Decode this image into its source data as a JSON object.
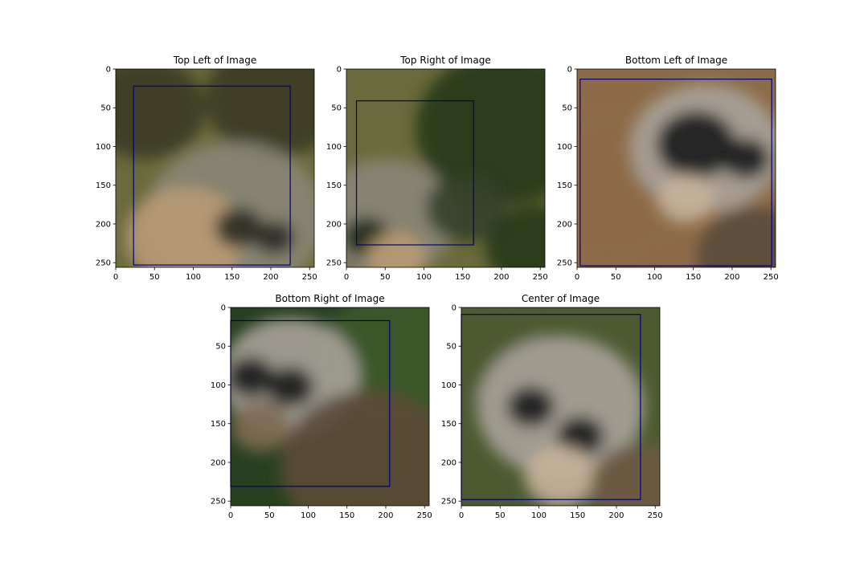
{
  "figure": {
    "background": "#ffffff",
    "axis_color": "#000000",
    "box_color": "#00007f"
  },
  "chart_data": [
    {
      "type": "image",
      "title": "Top Left of Image",
      "image_region": "top-left",
      "xlim": [
        0,
        256
      ],
      "ylim": [
        256,
        0
      ],
      "xticks": [
        0,
        50,
        100,
        150,
        200,
        250
      ],
      "yticks": [
        0,
        50,
        100,
        150,
        200,
        250
      ],
      "bounding_box": {
        "x1": 23,
        "y1": 22,
        "x2": 225,
        "y2": 253
      },
      "palette": [
        "#6b6a3c",
        "#3b3a24",
        "#8a8577",
        "#2a2a22",
        "#b99a76",
        "#4a4640"
      ]
    },
    {
      "type": "image",
      "title": "Top Right of Image",
      "image_region": "top-right",
      "xlim": [
        0,
        256
      ],
      "ylim": [
        256,
        0
      ],
      "xticks": [
        0,
        50,
        100,
        150,
        200,
        250
      ],
      "yticks": [
        0,
        50,
        100,
        150,
        200,
        250
      ],
      "bounding_box": {
        "x1": 13,
        "y1": 41,
        "x2": 164,
        "y2": 227
      },
      "palette": [
        "#6b6a3c",
        "#23391b",
        "#8a8577",
        "#1f2a16",
        "#b99a76",
        "#33402a"
      ]
    },
    {
      "type": "image",
      "title": "Bottom Left of Image",
      "image_region": "bottom-left",
      "xlim": [
        0,
        256
      ],
      "ylim": [
        256,
        0
      ],
      "xticks": [
        0,
        50,
        100,
        150,
        200,
        250
      ],
      "yticks": [
        0,
        50,
        100,
        150,
        200,
        250
      ],
      "bounding_box": {
        "x1": 4,
        "y1": 13,
        "x2": 251,
        "y2": 254
      },
      "palette": [
        "#8d6b49",
        "#6e5236",
        "#a9a299",
        "#1b1a19",
        "#c6b29a",
        "#5a4a3a"
      ]
    },
    {
      "type": "image",
      "title": "Bottom Right of Image",
      "image_region": "bottom-right",
      "xlim": [
        0,
        256
      ],
      "ylim": [
        256,
        0
      ],
      "xticks": [
        0,
        50,
        100,
        150,
        200,
        250
      ],
      "yticks": [
        0,
        50,
        100,
        150,
        200,
        250
      ],
      "bounding_box": {
        "x1": 0,
        "y1": 17,
        "x2": 205,
        "y2": 231
      },
      "palette": [
        "#27401f",
        "#3a5a2a",
        "#a9a299",
        "#1b1a19",
        "#806a52",
        "#5c4a38"
      ]
    },
    {
      "type": "image",
      "title": "Center of Image",
      "image_region": "center",
      "xlim": [
        0,
        256
      ],
      "ylim": [
        256,
        0
      ],
      "xticks": [
        0,
        50,
        100,
        150,
        200,
        250
      ],
      "yticks": [
        0,
        50,
        100,
        150,
        200,
        250
      ],
      "bounding_box": {
        "x1": 0,
        "y1": 9,
        "x2": 231,
        "y2": 248
      },
      "palette": [
        "#4c5a32",
        "#6b6a3c",
        "#a9a299",
        "#1b1a19",
        "#c6b29a",
        "#6e5a44"
      ]
    }
  ]
}
